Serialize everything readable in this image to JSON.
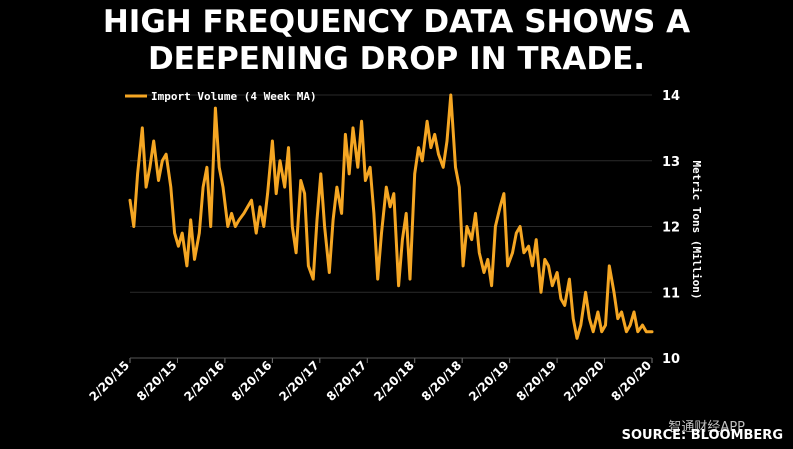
{
  "header": {
    "title_line1": "HIGH FREQUENCY DATA SHOWS A",
    "title_line2": "DEEPENING DROP IN TRADE."
  },
  "footer": {
    "source": "SOURCE: BLOOMBERG",
    "watermark": "智通财经APP"
  },
  "colors": {
    "background": "#000000",
    "line": "#F5A623",
    "text": "#ffffff",
    "grid": "#2a2a2a"
  },
  "chart_data": {
    "type": "line",
    "title": "HIGH FREQUENCY DATA SHOWS A DEEPENING DROP IN TRADE.",
    "ylabel": "Metric Tons (Million)",
    "xlabel": "",
    "ylim": [
      10,
      14
    ],
    "yticks": [
      10,
      11,
      12,
      13,
      14
    ],
    "xlim": [
      2015.0,
      2020.5
    ],
    "x_tick_values": [
      2015.0,
      2015.5,
      2016.0,
      2016.5,
      2017.0,
      2017.5,
      2018.0,
      2018.5,
      2019.0,
      2019.5,
      2020.0,
      2020.5
    ],
    "x_tick_labels": [
      "2/20/15",
      "8/20/15",
      "2/20/16",
      "8/20/16",
      "2/20/17",
      "8/20/17",
      "2/20/18",
      "8/20/18",
      "2/20/19",
      "8/20/19",
      "2/20/20",
      "8/20/20"
    ],
    "legend": "top-left",
    "grid": true,
    "series": [
      {
        "name": "Import Volume (4 Week MA)",
        "x": [
          2015.0,
          2015.04,
          2015.08,
          2015.13,
          2015.17,
          2015.21,
          2015.25,
          2015.3,
          2015.34,
          2015.38,
          2015.43,
          2015.47,
          2015.51,
          2015.55,
          2015.6,
          2015.64,
          2015.68,
          2015.73,
          2015.77,
          2015.81,
          2015.85,
          2015.9,
          2015.94,
          2015.98,
          2016.03,
          2016.07,
          2016.11,
          2016.15,
          2016.2,
          2016.24,
          2016.28,
          2016.33,
          2016.37,
          2016.41,
          2016.45,
          2016.5,
          2016.54,
          2016.58,
          2016.63,
          2016.67,
          2016.71,
          2016.75,
          2016.8,
          2016.84,
          2016.88,
          2016.93,
          2016.97,
          2017.01,
          2017.05,
          2017.1,
          2017.14,
          2017.18,
          2017.23,
          2017.27,
          2017.31,
          2017.35,
          2017.4,
          2017.44,
          2017.48,
          2017.53,
          2017.57,
          2017.61,
          2017.65,
          2017.7,
          2017.74,
          2017.78,
          2017.83,
          2017.87,
          2017.91,
          2017.95,
          2018.0,
          2018.04,
          2018.08,
          2018.13,
          2018.17,
          2018.21,
          2018.25,
          2018.3,
          2018.34,
          2018.38,
          2018.43,
          2018.47,
          2018.51,
          2018.55,
          2018.6,
          2018.64,
          2018.68,
          2018.73,
          2018.77,
          2018.81,
          2018.85,
          2018.9,
          2018.94,
          2018.98,
          2019.03,
          2019.07,
          2019.11,
          2019.15,
          2019.2,
          2019.24,
          2019.28,
          2019.33,
          2019.37,
          2019.41,
          2019.45,
          2019.5,
          2019.54,
          2019.58,
          2019.63,
          2019.67,
          2019.71,
          2019.75,
          2019.8,
          2019.84,
          2019.88,
          2019.93,
          2019.97,
          2020.01,
          2020.05,
          2020.1,
          2020.14,
          2020.18,
          2020.23,
          2020.27,
          2020.31,
          2020.35,
          2020.4,
          2020.44,
          2020.5
        ],
        "values": [
          12.4,
          12.0,
          12.8,
          13.5,
          12.6,
          12.9,
          13.3,
          12.7,
          13.0,
          13.1,
          12.6,
          11.9,
          11.7,
          11.9,
          11.4,
          12.1,
          11.5,
          11.9,
          12.6,
          12.9,
          12.0,
          13.8,
          12.9,
          12.6,
          12.0,
          12.2,
          12.0,
          12.1,
          12.2,
          12.3,
          12.4,
          11.9,
          12.3,
          12.0,
          12.5,
          13.3,
          12.5,
          13.0,
          12.6,
          13.2,
          12.0,
          11.6,
          12.7,
          12.5,
          11.4,
          11.2,
          12.1,
          12.8,
          12.0,
          11.3,
          12.1,
          12.6,
          12.2,
          13.4,
          12.8,
          13.5,
          12.9,
          13.6,
          12.7,
          12.9,
          12.2,
          11.2,
          11.9,
          12.6,
          12.3,
          12.5,
          11.1,
          11.8,
          12.2,
          11.2,
          12.8,
          13.2,
          13.0,
          13.6,
          13.2,
          13.4,
          13.1,
          12.9,
          13.3,
          14.0,
          12.9,
          12.6,
          11.4,
          12.0,
          11.8,
          12.2,
          11.6,
          11.3,
          11.5,
          11.1,
          12.0,
          12.3,
          12.5,
          11.4,
          11.6,
          11.9,
          12.0,
          11.6,
          11.7,
          11.4,
          11.8,
          11.0,
          11.5,
          11.4,
          11.1,
          11.3,
          10.9,
          10.8,
          11.2,
          10.6,
          10.3,
          10.5,
          11.0,
          10.6,
          10.4,
          10.7,
          10.4,
          10.5,
          11.4,
          11.0,
          10.6,
          10.7,
          10.4,
          10.5,
          10.7,
          10.4,
          10.5,
          10.4,
          10.4
        ]
      }
    ]
  }
}
